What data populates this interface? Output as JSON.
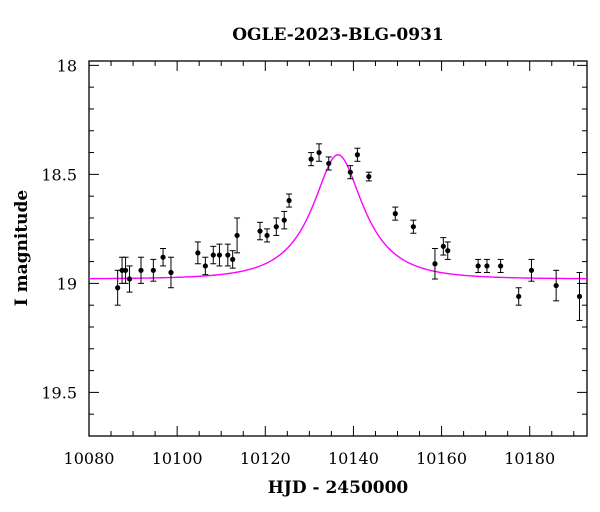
{
  "chart_data": {
    "type": "scatter",
    "title": "OGLE-2023-BLG-0931",
    "xlabel": "HJD - 2450000",
    "ylabel": "I magnitude",
    "xlim": [
      10080,
      10193
    ],
    "ylim": [
      19.7,
      17.98
    ],
    "y_inverted": true,
    "x_ticks": [
      10080,
      10100,
      10120,
      10140,
      10160,
      10180
    ],
    "y_ticks": [
      18,
      18.5,
      19,
      19.5
    ],
    "x_tick_labels": [
      "10080",
      "10100",
      "10120",
      "10140",
      "10160",
      "10180"
    ],
    "y_tick_labels": [
      "18",
      "18.5",
      "19",
      "19.5"
    ],
    "grid": false,
    "series": [
      {
        "kind": "points_with_errorbars",
        "color": "#000000",
        "points": [
          {
            "x": 10086.5,
            "y": 19.02,
            "err": 0.08
          },
          {
            "x": 10087.5,
            "y": 18.94,
            "err": 0.06
          },
          {
            "x": 10088.3,
            "y": 18.94,
            "err": 0.06
          },
          {
            "x": 10089.2,
            "y": 18.98,
            "err": 0.06
          },
          {
            "x": 10091.8,
            "y": 18.94,
            "err": 0.06
          },
          {
            "x": 10094.6,
            "y": 18.94,
            "err": 0.05
          },
          {
            "x": 10096.8,
            "y": 18.88,
            "err": 0.04
          },
          {
            "x": 10098.6,
            "y": 18.95,
            "err": 0.07
          },
          {
            "x": 10104.7,
            "y": 18.86,
            "err": 0.05
          },
          {
            "x": 10106.4,
            "y": 18.92,
            "err": 0.04
          },
          {
            "x": 10108.2,
            "y": 18.87,
            "err": 0.04
          },
          {
            "x": 10109.6,
            "y": 18.87,
            "err": 0.05
          },
          {
            "x": 10111.5,
            "y": 18.87,
            "err": 0.05
          },
          {
            "x": 10112.6,
            "y": 18.89,
            "err": 0.04
          },
          {
            "x": 10113.6,
            "y": 18.78,
            "err": 0.08
          },
          {
            "x": 10118.8,
            "y": 18.76,
            "err": 0.04
          },
          {
            "x": 10120.4,
            "y": 18.78,
            "err": 0.03
          },
          {
            "x": 10122.5,
            "y": 18.74,
            "err": 0.04
          },
          {
            "x": 10124.3,
            "y": 18.71,
            "err": 0.04
          },
          {
            "x": 10125.4,
            "y": 18.62,
            "err": 0.03
          },
          {
            "x": 10130.4,
            "y": 18.43,
            "err": 0.03
          },
          {
            "x": 10132.2,
            "y": 18.4,
            "err": 0.04
          },
          {
            "x": 10134.4,
            "y": 18.45,
            "err": 0.03
          },
          {
            "x": 10139.3,
            "y": 18.49,
            "err": 0.03
          },
          {
            "x": 10140.9,
            "y": 18.41,
            "err": 0.03
          },
          {
            "x": 10143.5,
            "y": 18.51,
            "err": 0.02
          },
          {
            "x": 10149.5,
            "y": 18.68,
            "err": 0.03
          },
          {
            "x": 10153.6,
            "y": 18.74,
            "err": 0.03
          },
          {
            "x": 10158.5,
            "y": 18.91,
            "err": 0.07
          },
          {
            "x": 10160.4,
            "y": 18.83,
            "err": 0.04
          },
          {
            "x": 10161.4,
            "y": 18.85,
            "err": 0.04
          },
          {
            "x": 10168.3,
            "y": 18.92,
            "err": 0.03
          },
          {
            "x": 10170.3,
            "y": 18.92,
            "err": 0.03
          },
          {
            "x": 10173.4,
            "y": 18.92,
            "err": 0.03
          },
          {
            "x": 10177.5,
            "y": 19.06,
            "err": 0.04
          },
          {
            "x": 10180.4,
            "y": 18.94,
            "err": 0.05
          },
          {
            "x": 10186.0,
            "y": 19.01,
            "err": 0.07
          },
          {
            "x": 10191.3,
            "y": 19.06,
            "err": 0.11
          }
        ]
      },
      {
        "kind": "model_curve",
        "color": "#ff00ff",
        "peak_x": 10136.5,
        "peak_y": 18.41,
        "baseline_y": 18.98,
        "tE": 12.4,
        "u0": 0.48
      }
    ]
  }
}
